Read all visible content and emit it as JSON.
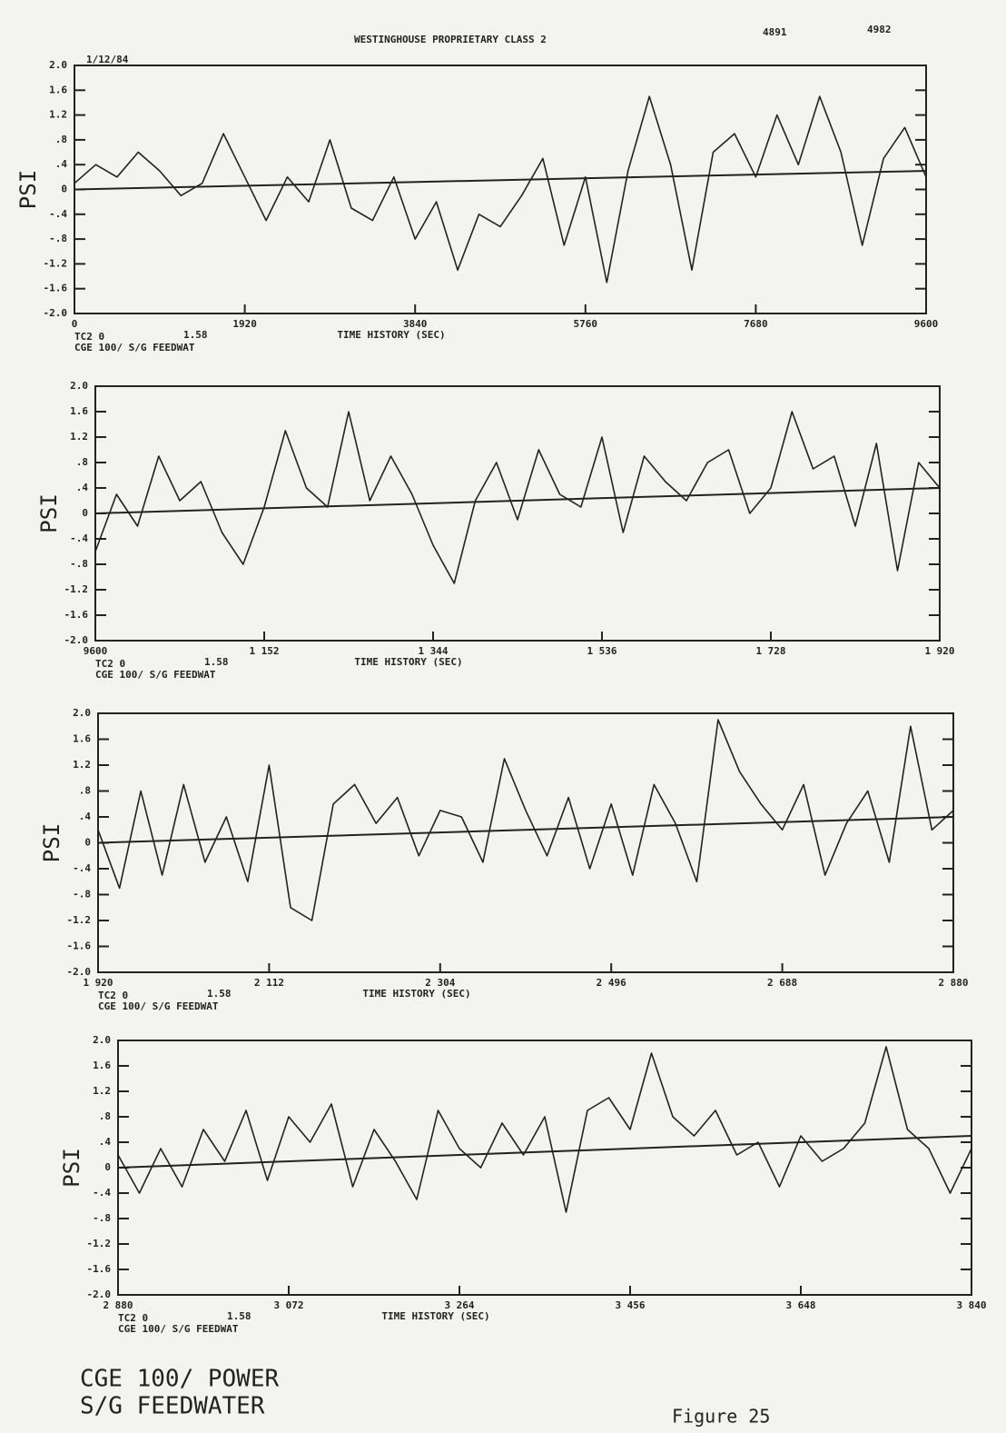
{
  "header": {
    "classification": "WESTINGHOUSE PROPRIETARY CLASS 2",
    "date": "1/12/84",
    "codes": [
      "4891",
      "4982"
    ]
  },
  "footer": {
    "lines": [
      "CGE 100/ POWER",
      "S/G FEEDWATER"
    ],
    "figure": "Figure 25"
  },
  "chart_data": [
    {
      "type": "line",
      "ylabel": "PSI",
      "xlabel": "TIME HISTORY (SEC)",
      "notes": [
        "TC2 0",
        "1.58",
        "CGE 100/ S/G FEEDWAT"
      ],
      "xlim": [
        0,
        9600
      ],
      "xticks": [
        0,
        1920,
        3840,
        5760,
        7680,
        9600
      ],
      "ylim": [
        -2,
        2
      ],
      "yticks": [
        {
          "value": 2,
          "label": "2.0"
        },
        1.6,
        1.2,
        {
          "value": 0.8,
          "label": ".8"
        },
        {
          "value": 0.4,
          "label": ".4"
        },
        0,
        {
          "value": -0.4,
          "label": "-.4"
        },
        {
          "value": -0.8,
          "label": "-.8"
        },
        -1.2,
        -1.6,
        {
          "value": -2,
          "label": "-2.0"
        }
      ],
      "x": [
        0,
        240,
        480,
        720,
        960,
        1200,
        1440,
        1680,
        1920,
        2160,
        2400,
        2640,
        2880,
        3120,
        3360,
        3600,
        3840,
        4080,
        4320,
        4560,
        4800,
        5040,
        5280,
        5520,
        5760,
        6000,
        6240,
        6480,
        6720,
        6960,
        7200,
        7440,
        7680,
        7920,
        8160,
        8400,
        8640,
        8880,
        9120,
        9360,
        9600
      ],
      "series": [
        {
          "color": "#222222",
          "values": [
            0.1,
            0.4,
            0.2,
            0.6,
            0.3,
            -0.1,
            0.1,
            0.9,
            0.2,
            -0.5,
            0.2,
            -0.2,
            0.8,
            -0.3,
            -0.5,
            0.2,
            -0.8,
            -0.2,
            -1.3,
            -0.4,
            -0.6,
            -0.1,
            0.5,
            -0.9,
            0.2,
            -1.5,
            0.3,
            1.5,
            0.4,
            -1.3,
            0.6,
            0.9,
            0.2,
            1.2,
            0.4,
            1.5,
            0.6,
            -0.9,
            0.5,
            1.0,
            0.2
          ]
        },
        {
          "color": "#222222",
          "x": [
            0,
            9600
          ],
          "values": [
            0,
            0.3
          ]
        }
      ]
    },
    {
      "type": "line",
      "ylabel": "PSI",
      "xlabel": "TIME HISTORY (SEC)",
      "notes": [
        "TC2 0",
        "1.58",
        "CGE 100/ S/G FEEDWAT"
      ],
      "xlim": [
        9600,
        19200
      ],
      "xticks": [
        9600,
        {
          "value": 11520,
          "label": "1 152"
        },
        {
          "value": 13440,
          "label": "1 344"
        },
        {
          "value": 15360,
          "label": "1 536"
        },
        {
          "value": 17280,
          "label": "1 728"
        },
        {
          "value": 19200,
          "label": "1 920"
        }
      ],
      "ylim": [
        -2,
        2
      ],
      "yticks": [
        {
          "value": 2,
          "label": "2.0"
        },
        1.6,
        1.2,
        {
          "value": 0.8,
          "label": ".8"
        },
        {
          "value": 0.4,
          "label": ".4"
        },
        0,
        {
          "value": -0.4,
          "label": "-.4"
        },
        {
          "value": -0.8,
          "label": "-.8"
        },
        -1.2,
        -1.6,
        {
          "value": -2,
          "label": "-2.0"
        }
      ],
      "x": [
        9600,
        9840,
        10080,
        10320,
        10560,
        10800,
        11040,
        11280,
        11520,
        11760,
        12000,
        12240,
        12480,
        12720,
        12960,
        13200,
        13440,
        13680,
        13920,
        14160,
        14400,
        14640,
        14880,
        15120,
        15360,
        15600,
        15840,
        16080,
        16320,
        16560,
        16800,
        17040,
        17280,
        17520,
        17760,
        18000,
        18240,
        18480,
        18720,
        18960,
        19200
      ],
      "series": [
        {
          "color": "#222222",
          "values": [
            -0.6,
            0.3,
            -0.2,
            0.9,
            0.2,
            0.5,
            -0.3,
            -0.8,
            0.1,
            1.3,
            0.4,
            0.1,
            1.6,
            0.2,
            0.9,
            0.3,
            -0.5,
            -1.1,
            0.2,
            0.8,
            -0.1,
            1.0,
            0.3,
            0.1,
            1.2,
            -0.3,
            0.9,
            0.5,
            0.2,
            0.8,
            1.0,
            0.0,
            0.4,
            1.6,
            0.7,
            0.9,
            -0.2,
            1.1,
            -0.9,
            0.8,
            0.4
          ]
        },
        {
          "color": "#222222",
          "x": [
            9600,
            19200
          ],
          "values": [
            0,
            0.4
          ]
        }
      ]
    },
    {
      "type": "line",
      "ylabel": "PSI",
      "xlabel": "TIME HISTORY (SEC)",
      "notes": [
        "TC2 0",
        "1.58",
        "CGE 100/ S/G FEEDWAT"
      ],
      "xlim": [
        19200,
        28800
      ],
      "xticks": [
        {
          "value": 19200,
          "label": "1 920"
        },
        {
          "value": 21120,
          "label": "2 112"
        },
        {
          "value": 23040,
          "label": "2 304"
        },
        {
          "value": 24960,
          "label": "2 496"
        },
        {
          "value": 26880,
          "label": "2 688"
        },
        {
          "value": 28800,
          "label": "2 880"
        }
      ],
      "ylim": [
        -2,
        2
      ],
      "yticks": [
        {
          "value": 2,
          "label": "2.0"
        },
        1.6,
        1.2,
        {
          "value": 0.8,
          "label": ".8"
        },
        {
          "value": 0.4,
          "label": ".4"
        },
        0,
        {
          "value": -0.4,
          "label": "-.4"
        },
        {
          "value": -0.8,
          "label": "-.8"
        },
        -1.2,
        -1.6,
        {
          "value": -2,
          "label": "-2.0"
        }
      ],
      "x": [
        19200,
        19440,
        19680,
        19920,
        20160,
        20400,
        20640,
        20880,
        21120,
        21360,
        21600,
        21840,
        22080,
        22320,
        22560,
        22800,
        23040,
        23280,
        23520,
        23760,
        24000,
        24240,
        24480,
        24720,
        24960,
        25200,
        25440,
        25680,
        25920,
        26160,
        26400,
        26640,
        26880,
        27120,
        27360,
        27600,
        27840,
        28080,
        28320,
        28560,
        28800
      ],
      "series": [
        {
          "color": "#222222",
          "values": [
            0.2,
            -0.7,
            0.8,
            -0.5,
            0.9,
            -0.3,
            0.4,
            -0.6,
            1.2,
            -1.0,
            -1.2,
            0.6,
            0.9,
            0.3,
            0.7,
            -0.2,
            0.5,
            0.4,
            -0.3,
            1.3,
            0.5,
            -0.2,
            0.7,
            -0.4,
            0.6,
            -0.5,
            0.9,
            0.3,
            -0.6,
            1.9,
            1.1,
            0.6,
            0.2,
            0.9,
            -0.5,
            0.3,
            0.8,
            -0.3,
            1.8,
            0.2,
            0.5
          ]
        },
        {
          "color": "#222222",
          "x": [
            19200,
            28800
          ],
          "values": [
            0,
            0.4
          ]
        }
      ]
    },
    {
      "type": "line",
      "ylabel": "PSI",
      "xlabel": "TIME HISTORY (SEC)",
      "notes": [
        "TC2 0",
        "1.58",
        "CGE 100/ S/G FEEDWAT"
      ],
      "xlim": [
        28800,
        38400
      ],
      "xticks": [
        {
          "value": 28800,
          "label": "2 880"
        },
        {
          "value": 30720,
          "label": "3 072"
        },
        {
          "value": 32640,
          "label": "3 264"
        },
        {
          "value": 34560,
          "label": "3 456"
        },
        {
          "value": 36480,
          "label": "3 648"
        },
        {
          "value": 38400,
          "label": "3 840"
        }
      ],
      "ylim": [
        -2,
        2
      ],
      "yticks": [
        {
          "value": 2,
          "label": "2.0"
        },
        1.6,
        1.2,
        {
          "value": 0.8,
          "label": ".8"
        },
        {
          "value": 0.4,
          "label": ".4"
        },
        0,
        {
          "value": -0.4,
          "label": "-.4"
        },
        {
          "value": -0.8,
          "label": "-.8"
        },
        -1.2,
        -1.6,
        {
          "value": -2,
          "label": "-2.0"
        }
      ],
      "x": [
        28800,
        29040,
        29280,
        29520,
        29760,
        30000,
        30240,
        30480,
        30720,
        30960,
        31200,
        31440,
        31680,
        31920,
        32160,
        32400,
        32640,
        32880,
        33120,
        33360,
        33600,
        33840,
        34080,
        34320,
        34560,
        34800,
        35040,
        35280,
        35520,
        35760,
        36000,
        36240,
        36480,
        36720,
        36960,
        37200,
        37440,
        37680,
        37920,
        38160,
        38400
      ],
      "series": [
        {
          "color": "#222222",
          "values": [
            0.2,
            -0.4,
            0.3,
            -0.3,
            0.6,
            0.1,
            0.9,
            -0.2,
            0.8,
            0.4,
            1.0,
            -0.3,
            0.6,
            0.1,
            -0.5,
            0.9,
            0.3,
            0.0,
            0.7,
            0.2,
            0.8,
            -0.7,
            0.9,
            1.1,
            0.6,
            1.8,
            0.8,
            0.5,
            0.9,
            0.2,
            0.4,
            -0.3,
            0.5,
            0.1,
            0.3,
            0.7,
            1.9,
            0.6,
            0.3,
            -0.4,
            0.3
          ]
        },
        {
          "color": "#222222",
          "x": [
            28800,
            38400
          ],
          "values": [
            0,
            0.5
          ]
        }
      ]
    }
  ]
}
